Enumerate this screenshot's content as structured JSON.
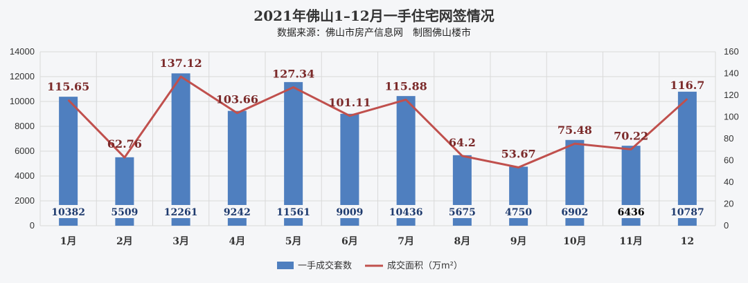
{
  "chart_data": {
    "type": "bar",
    "title": "2021年佛山1–12月一手住宅网签情况",
    "subtitle": "数据来源：佛山市房产信息网　制图佛山楼市",
    "categories": [
      "1月",
      "2月",
      "3月",
      "4月",
      "5月",
      "6月",
      "7月",
      "8月",
      "9月",
      "10月",
      "11月",
      "12"
    ],
    "series": [
      {
        "name": "一手成交套数",
        "type": "bar",
        "axis": "left",
        "values": [
          10382,
          5509,
          12261,
          9242,
          11561,
          9009,
          10436,
          5675,
          4750,
          6902,
          6436,
          10787
        ],
        "labels": [
          "10382",
          "5509",
          "12261",
          "9242",
          "11561",
          "9009",
          "10436",
          "5675",
          "4750",
          "6902",
          "6436",
          "10787"
        ]
      },
      {
        "name": "成交面积（万m²）",
        "type": "line",
        "axis": "right",
        "values": [
          115.65,
          62.76,
          137.12,
          103.66,
          127.34,
          101.11,
          115.88,
          64.2,
          53.67,
          75.48,
          70.22,
          116.7
        ],
        "labels": [
          "115.65",
          "62.76",
          "137.12",
          "103.66",
          "127.34",
          "101.11",
          "115.88",
          "64.2",
          "53.67",
          "75.48",
          "70.22",
          "116.7"
        ]
      }
    ],
    "y_left": {
      "min": 0,
      "max": 14000,
      "ticks": [
        "0",
        "2000",
        "4000",
        "6000",
        "8000",
        "10000",
        "12000",
        "14000"
      ]
    },
    "y_right": {
      "min": 0,
      "max": 160,
      "ticks": [
        "0",
        "20",
        "40",
        "60",
        "80",
        "100",
        "120",
        "140",
        "160"
      ]
    },
    "grid": true,
    "legend_position": "bottom",
    "colors": {
      "bar": "#4f7fbf",
      "line": "#c0504d",
      "bar_label": "#1f3b6e",
      "bar_label_highlight": "#000000",
      "line_label": "#7b2a2a"
    },
    "highlighted_bar_label_index": 10
  }
}
